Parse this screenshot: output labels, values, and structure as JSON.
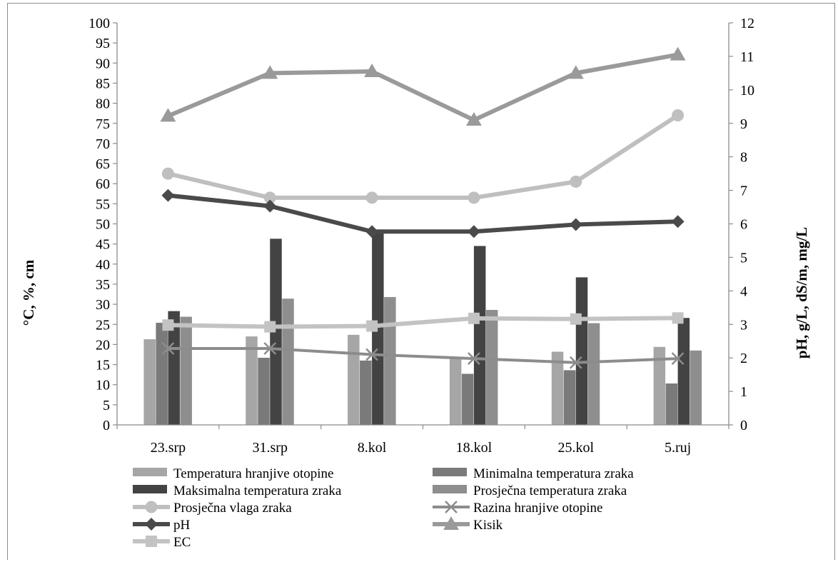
{
  "chart_data": {
    "type": "bar",
    "categories": [
      "23.srp",
      "31.srp",
      "8.kol",
      "18.kol",
      "25.kol",
      "5.ruj"
    ],
    "ylabel_left": "°C, %, cm",
    "ylabel_right": "pH, g/L, dS/m, mg/L",
    "ylim_left": [
      0,
      100
    ],
    "ylim_right": [
      0,
      12
    ],
    "yticks_left": [
      0,
      5,
      10,
      15,
      20,
      25,
      30,
      35,
      40,
      45,
      50,
      55,
      60,
      65,
      70,
      75,
      80,
      85,
      90,
      95,
      100
    ],
    "yticks_right": [
      0,
      1,
      2,
      3,
      4,
      5,
      6,
      7,
      8,
      9,
      10,
      11,
      12
    ],
    "legend_position": "bottom",
    "grid": false,
    "series": [
      {
        "name": "Temperatura hranjive otopine",
        "kind": "bar",
        "axis": "left",
        "color": "#a6a6a6",
        "values": [
          21.3,
          22.0,
          22.4,
          16.5,
          18.2,
          19.4
        ]
      },
      {
        "name": "Minimalna temperatura zraka",
        "kind": "bar",
        "axis": "left",
        "color": "#7a7a7a",
        "values": [
          25.4,
          16.7,
          16.0,
          12.7,
          13.6,
          10.3
        ]
      },
      {
        "name": "Maksimalna temperatura zraka",
        "kind": "bar",
        "axis": "left",
        "color": "#434343",
        "values": [
          28.3,
          46.3,
          47.8,
          44.5,
          36.7,
          26.6
        ]
      },
      {
        "name": "Prosječna temperatura zraka",
        "kind": "bar",
        "axis": "left",
        "color": "#8e8e8e",
        "values": [
          26.9,
          31.4,
          31.8,
          28.6,
          25.3,
          18.5
        ]
      },
      {
        "name": "Prosječna vlaga zraka",
        "kind": "line",
        "axis": "left",
        "marker": "circle",
        "color": "#bfbfbf",
        "values": [
          62.5,
          56.5,
          56.5,
          56.5,
          60.5,
          77.0
        ]
      },
      {
        "name": "Razina hranjive otopine",
        "kind": "line",
        "axis": "left",
        "marker": "x",
        "color": "#8c8c8c",
        "values": [
          19.0,
          19.0,
          17.5,
          16.5,
          15.5,
          16.5
        ]
      },
      {
        "name": "pH",
        "kind": "line",
        "axis": "right",
        "marker": "diamond",
        "color": "#4a4a4a",
        "values": [
          6.85,
          6.53,
          5.77,
          5.77,
          5.98,
          6.07
        ]
      },
      {
        "name": "Kisik",
        "kind": "line",
        "axis": "right",
        "marker": "triangle",
        "color": "#9a9a9a",
        "values": [
          9.22,
          10.5,
          10.55,
          9.1,
          10.5,
          11.05
        ]
      },
      {
        "name": "EC",
        "kind": "line",
        "axis": "right",
        "marker": "square",
        "color": "#c3c3c3",
        "values": [
          2.98,
          2.93,
          2.95,
          3.18,
          3.16,
          3.19
        ]
      }
    ]
  }
}
